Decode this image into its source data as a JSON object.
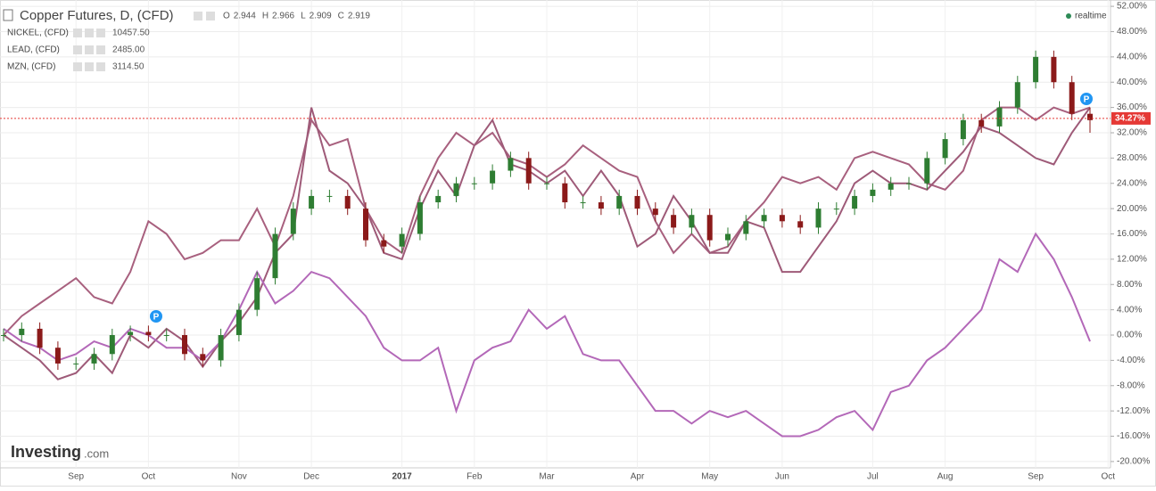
{
  "chart_data": {
    "type": "candlestick",
    "title": "Copper Futures, D, (CFD)",
    "quote": [
      {
        "label": "O",
        "value": "2.944"
      },
      {
        "label": "H",
        "value": "2.966"
      },
      {
        "label": "L",
        "value": "2.909"
      },
      {
        "label": "C",
        "value": "2.919"
      }
    ],
    "status": "realtime",
    "brand": "Investing",
    "brand_suffix": ".com",
    "event_markers": [
      "P",
      "P"
    ],
    "up_color": "#2e7d32",
    "down_color": "#8b1a1a",
    "categories": [
      "",
      "",
      "",
      "",
      "Sep",
      "",
      "",
      "",
      "Oct",
      "",
      "",
      "",
      "",
      "Nov",
      "",
      "",
      "",
      "Dec",
      "",
      "",
      "",
      "",
      "2017",
      "",
      "",
      "",
      "Feb",
      "",
      "",
      "",
      "Mar",
      "",
      "",
      "",
      "",
      "Apr",
      "",
      "",
      "",
      "May",
      "",
      "",
      "",
      "Jun",
      "",
      "",
      "",
      "",
      "Jul",
      "",
      "",
      "",
      "Aug",
      "",
      "",
      "",
      "",
      "Sep",
      "",
      "",
      "",
      "Oct"
    ],
    "open": [
      0,
      0,
      1,
      -2,
      -4.5,
      -4.5,
      -3,
      0,
      0.5,
      0,
      0,
      -3,
      -4,
      0,
      4,
      9,
      16,
      20,
      22,
      22,
      20,
      15,
      14,
      16,
      21,
      22,
      24,
      24,
      26,
      28,
      24,
      24,
      21,
      21,
      20,
      22,
      20,
      19,
      17,
      19,
      15,
      16,
      18,
      19,
      18,
      17,
      20,
      20,
      22,
      23,
      24,
      24,
      28,
      31,
      34,
      33,
      36,
      40,
      44,
      40,
      35,
      null
    ],
    "high": [
      1,
      2,
      2,
      -1,
      -3.5,
      -2,
      1,
      1.5,
      1.5,
      1,
      1,
      -2,
      1,
      5,
      10,
      17,
      21,
      23,
      23,
      23,
      21,
      16,
      17,
      22,
      23,
      25,
      25,
      27,
      29,
      29,
      25,
      25,
      22,
      22,
      23,
      23,
      21,
      20,
      20,
      20,
      17,
      19,
      20,
      20,
      19,
      21,
      21,
      23,
      24,
      25,
      25,
      29,
      32,
      35,
      35,
      37,
      41,
      45,
      45,
      41,
      36,
      null
    ],
    "low": [
      -1,
      -1,
      -3,
      -5.5,
      -5.5,
      -5.5,
      -4,
      -1,
      -1,
      -1,
      -4,
      -5,
      -5,
      -1,
      3,
      8,
      15,
      19,
      21,
      19,
      14,
      13,
      13,
      15,
      20,
      21,
      23,
      23,
      25,
      23,
      23,
      20,
      20,
      19,
      19,
      19,
      18,
      16,
      16,
      14,
      14,
      15,
      17,
      17,
      16,
      16,
      19,
      19,
      21,
      22,
      23,
      23,
      27,
      30,
      32,
      32,
      35,
      39,
      39,
      34,
      32,
      null
    ],
    "close": [
      0,
      1,
      -2,
      -4.5,
      -4.5,
      -3,
      0,
      0.5,
      0,
      0,
      -3,
      -4,
      0,
      4,
      9,
      16,
      20,
      22,
      22,
      20,
      15,
      14,
      16,
      21,
      22,
      24,
      24,
      26,
      28,
      24,
      24,
      21,
      21,
      20,
      22,
      20,
      19,
      17,
      19,
      15,
      16,
      18,
      19,
      18,
      17,
      20,
      20,
      22,
      23,
      24,
      24,
      28,
      31,
      34,
      33,
      36,
      40,
      44,
      40,
      35,
      34,
      null
    ],
    "series": [
      {
        "name": "NICKEL, (CFD)",
        "quote": "10457.50",
        "color": "#a8607e",
        "values": [
          0,
          3,
          5,
          7,
          9,
          6,
          5,
          10,
          18,
          16,
          12,
          13,
          15,
          15,
          20,
          14,
          22,
          34,
          30,
          31,
          20,
          15,
          13,
          22,
          28,
          32,
          30,
          32,
          28,
          27,
          25,
          27,
          30,
          28,
          26,
          25,
          18,
          13,
          16,
          13,
          14,
          18,
          21,
          25,
          24,
          25,
          23,
          28,
          29,
          28,
          27,
          24,
          23,
          26,
          34,
          36,
          36,
          34,
          36,
          35,
          36,
          null
        ]
      },
      {
        "name": "LEAD, (CFD)",
        "quote": "2485.00",
        "color": "#9e5a78",
        "values": [
          0,
          -2,
          -4,
          -7,
          -6,
          -3,
          -6,
          0,
          -2,
          1,
          -1,
          -5,
          -1,
          2,
          6,
          13,
          16,
          36,
          26,
          24,
          20,
          13,
          12,
          20,
          26,
          22,
          30,
          34,
          27,
          26,
          24,
          26,
          22,
          26,
          22,
          14,
          16,
          22,
          18,
          13,
          13,
          18,
          17,
          10,
          10,
          14,
          18,
          24,
          26,
          24,
          24,
          23,
          26,
          29,
          33,
          32,
          30,
          28,
          27,
          32,
          36,
          null
        ]
      },
      {
        "name": "MZN, (CFD)",
        "quote": "3114.50",
        "color": "#b368b8",
        "values": [
          1,
          -1,
          -2,
          -4,
          -3,
          -1,
          -2,
          1,
          0,
          -2,
          -2,
          -4,
          -1,
          4,
          10,
          5,
          7,
          10,
          9,
          6,
          3,
          -2,
          -4,
          -4,
          -2,
          -12,
          -4,
          -2,
          -1,
          4,
          1,
          3,
          -3,
          -4,
          -4,
          -8,
          -12,
          -12,
          -14,
          -12,
          -13,
          -12,
          -14,
          -16,
          -16,
          -15,
          -13,
          -12,
          -15,
          -9,
          -8,
          -4,
          -2,
          1,
          4,
          12,
          10,
          16,
          12,
          6,
          -1,
          null
        ]
      }
    ],
    "price_line": {
      "value": 34.27,
      "label": "34.27%",
      "color": "#e53935"
    },
    "ylim": [
      -21,
      53
    ],
    "yticks": [
      {
        "value": -20,
        "label": "-20.00%"
      },
      {
        "value": -16,
        "label": "-16.00%"
      },
      {
        "value": -12,
        "label": "-12.00%"
      },
      {
        "value": -8,
        "label": "-8.00%"
      },
      {
        "value": -4,
        "label": "-4.00%"
      },
      {
        "value": 0,
        "label": "0.00%"
      },
      {
        "value": 4,
        "label": "4.00%"
      },
      {
        "value": 8,
        "label": "8.00%"
      },
      {
        "value": 12,
        "label": "12.00%"
      },
      {
        "value": 16,
        "label": "16.00%"
      },
      {
        "value": 20,
        "label": "20.00%"
      },
      {
        "value": 24,
        "label": "24.00%"
      },
      {
        "value": 28,
        "label": "28.00%"
      },
      {
        "value": 32,
        "label": "32.00%"
      },
      {
        "value": 36,
        "label": "36.00%"
      },
      {
        "value": 40,
        "label": "40.00%"
      },
      {
        "value": 44,
        "label": "44.00%"
      },
      {
        "value": 48,
        "label": "48.00%"
      },
      {
        "value": 52,
        "label": "52.00%"
      }
    ],
    "grid": true
  }
}
